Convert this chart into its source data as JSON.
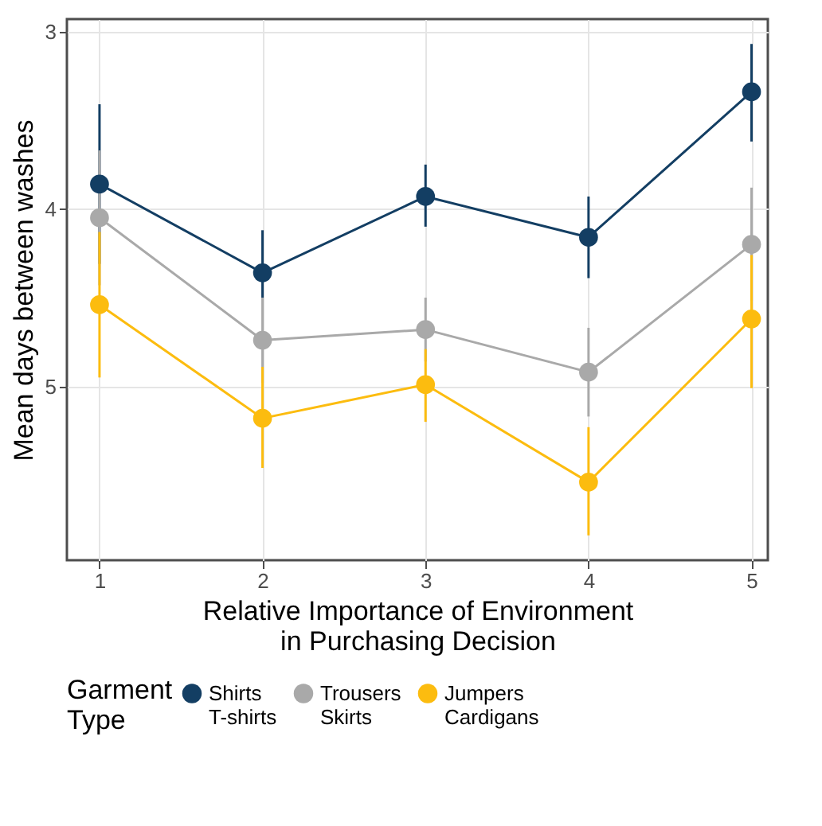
{
  "chart_data": {
    "type": "line",
    "xlabel": "Relative Importance of Environment\nin Purchasing Decision",
    "ylabel": "Mean days between washes",
    "legend_title": "Garment\nType",
    "x": [
      1,
      2,
      3,
      4,
      5
    ],
    "xlim": [
      0.8,
      5.1
    ],
    "xticks": [
      1,
      2,
      3,
      4,
      5
    ],
    "ylim": [
      5.98,
      2.93
    ],
    "yticks": [
      3,
      4,
      5
    ],
    "grid": true,
    "legend": "bottom",
    "marker": "circle",
    "line_style": "solid",
    "series": [
      {
        "name": "Shirts\nT-shirts",
        "color": "#133e63",
        "values": [
          3.86,
          4.36,
          3.93,
          4.16,
          3.34
        ],
        "errors": [
          [
            3.41,
            4.31
          ],
          [
            4.12,
            4.5
          ],
          [
            3.75,
            4.1
          ],
          [
            3.93,
            4.39
          ],
          [
            3.07,
            3.62
          ]
        ]
      },
      {
        "name": "Trousers\nSkirts",
        "color": "#a9a9a9",
        "values": [
          4.05,
          4.74,
          4.68,
          4.92,
          4.2
        ],
        "errors": [
          [
            3.67,
            4.43
          ],
          [
            4.5,
            4.98
          ],
          [
            4.5,
            4.86
          ],
          [
            4.67,
            5.17
          ],
          [
            3.88,
            4.52
          ]
        ]
      },
      {
        "name": "Jumpers\nCardigans",
        "color": "#fcbc0f",
        "values": [
          4.54,
          5.18,
          4.99,
          5.54,
          4.62
        ],
        "errors": [
          [
            4.13,
            4.95
          ],
          [
            4.89,
            5.46
          ],
          [
            4.79,
            5.2
          ],
          [
            5.23,
            5.84
          ],
          [
            4.26,
            5.01
          ]
        ]
      }
    ]
  }
}
